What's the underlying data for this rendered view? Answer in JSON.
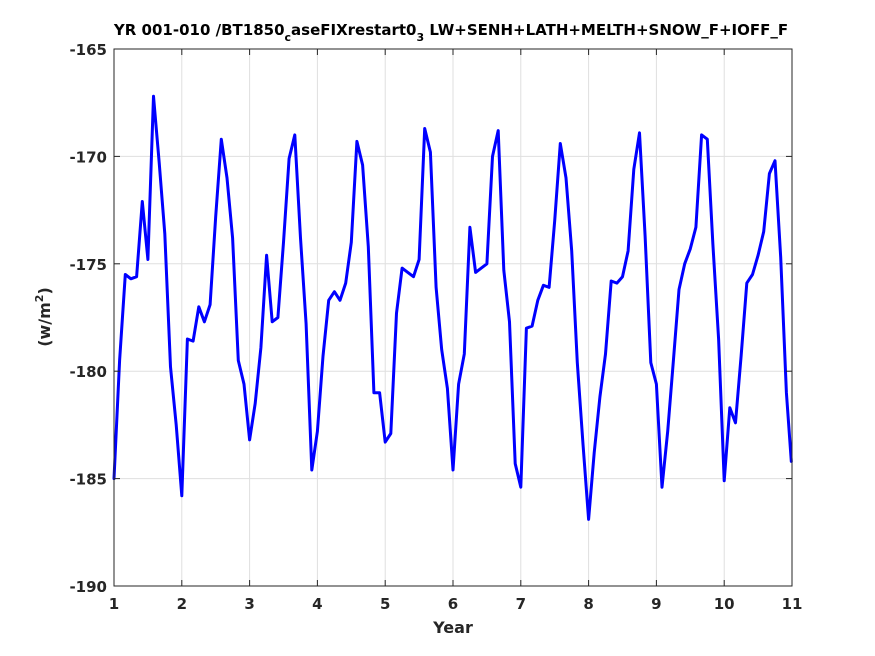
{
  "chart_data": {
    "type": "line",
    "title": {
      "part1": "YR 001-010 /BT1850",
      "sub1": "c",
      "part2": "aseFIXrestart0",
      "sub2": "3",
      "part3": " LW+SENH+LATH+MELTH+SNOW_F+IOFF_F"
    },
    "xlabel": "Year",
    "ylabel": {
      "text": "(w/m",
      "sup": "2",
      "close": ")"
    },
    "xlim": [
      1,
      11
    ],
    "ylim": [
      -190,
      -165
    ],
    "xticks": [
      1,
      2,
      3,
      4,
      5,
      6,
      7,
      8,
      9,
      10,
      11
    ],
    "yticks": [
      -190,
      -185,
      -180,
      -175,
      -170,
      -165
    ],
    "grid": true,
    "line_color": "#0000ff",
    "series": [
      {
        "x": [
          1.0,
          1.083,
          1.167,
          1.25,
          1.333,
          1.417,
          1.5,
          1.583,
          1.667,
          1.75,
          1.833,
          1.917,
          2.0,
          2.083,
          2.167,
          2.25,
          2.333,
          2.417,
          2.5,
          2.583,
          2.667,
          2.75,
          2.833,
          2.917,
          3.0,
          3.083,
          3.167,
          3.25,
          3.333,
          3.417,
          3.5,
          3.583,
          3.667,
          3.75,
          3.833,
          3.917,
          4.0,
          4.083,
          4.167,
          4.25,
          4.333,
          4.417,
          4.5,
          4.583,
          4.667,
          4.75,
          4.833,
          4.917,
          5.0,
          5.083,
          5.167,
          5.25,
          5.333,
          5.417,
          5.5,
          5.583,
          5.667,
          5.75,
          5.833,
          5.917,
          6.0,
          6.083,
          6.167,
          6.25,
          6.333,
          6.417,
          6.5,
          6.583,
          6.667,
          6.75,
          6.833,
          6.917,
          7.0,
          7.083,
          7.167,
          7.25,
          7.333,
          7.417,
          7.5,
          7.583,
          7.667,
          7.75,
          7.833,
          7.917,
          8.0,
          8.083,
          8.167,
          8.25,
          8.333,
          8.417,
          8.5,
          8.583,
          8.667,
          8.75,
          8.833,
          8.917,
          9.0,
          9.083,
          9.167,
          9.25,
          9.333,
          9.417,
          9.5,
          9.583,
          9.667,
          9.75,
          9.833,
          9.917,
          10.0,
          10.083,
          10.167,
          10.25,
          10.333,
          10.417,
          10.5,
          10.583,
          10.667,
          10.75,
          10.833,
          10.917,
          10.99
        ],
        "y": [
          -185.0,
          -179.5,
          -175.5,
          -175.7,
          -175.6,
          -172.1,
          -174.8,
          -167.2,
          -170.3,
          -173.6,
          -179.8,
          -182.5,
          -185.8,
          -178.5,
          -178.6,
          -177.0,
          -177.7,
          -176.9,
          -172.8,
          -169.2,
          -171.0,
          -173.8,
          -179.5,
          -180.6,
          -183.2,
          -181.5,
          -178.9,
          -174.6,
          -177.7,
          -177.5,
          -174.0,
          -170.1,
          -169.0,
          -173.8,
          -177.8,
          -184.6,
          -182.8,
          -179.3,
          -176.7,
          -176.3,
          -176.7,
          -175.9,
          -174.0,
          -169.3,
          -170.4,
          -174.2,
          -181.0,
          -181.0,
          -183.3,
          -182.9,
          -177.3,
          -175.2,
          -175.4,
          -175.6,
          -174.8,
          -168.7,
          -169.8,
          -176.1,
          -179.0,
          -180.8,
          -184.6,
          -180.6,
          -179.2,
          -173.3,
          -175.4,
          -175.2,
          -175.0,
          -170.0,
          -168.8,
          -175.3,
          -177.7,
          -184.3,
          -185.4,
          -178.0,
          -177.9,
          -176.7,
          -176.0,
          -176.1,
          -173.0,
          -169.4,
          -171.0,
          -174.4,
          -179.6,
          -183.4,
          -186.9,
          -183.8,
          -181.2,
          -179.2,
          -175.8,
          -175.9,
          -175.6,
          -174.4,
          -170.6,
          -168.9,
          -173.7,
          -179.6,
          -180.6,
          -185.4,
          -182.8,
          -179.5,
          -176.2,
          -175.0,
          -174.3,
          -173.3,
          -169.0,
          -169.2,
          -174.1,
          -178.5,
          -185.1,
          -181.7,
          -182.4,
          -179.3,
          -175.9,
          -175.5,
          -174.6,
          -173.5,
          -170.8,
          -170.2,
          -174.7,
          -181.0,
          -184.2
        ]
      }
    ]
  }
}
